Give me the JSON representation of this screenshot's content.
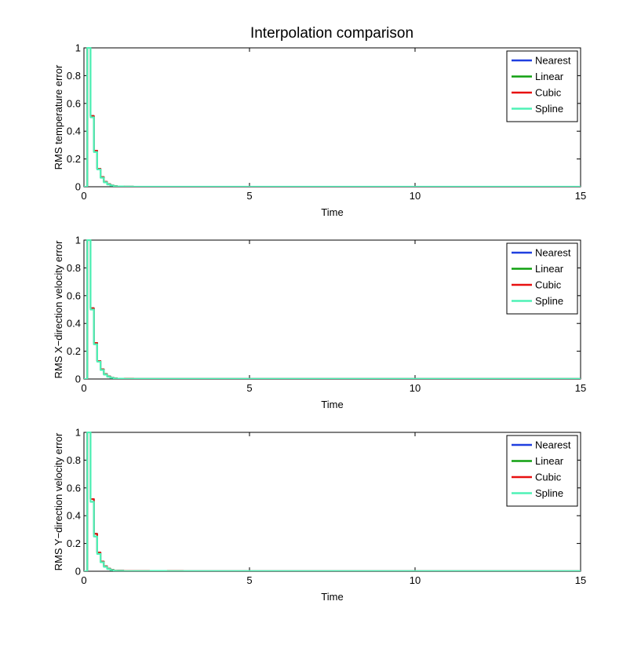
{
  "figure": {
    "title": "Interpolation comparison"
  },
  "chart_data": [
    {
      "type": "line",
      "ylabel": "RMS temperature error",
      "xlabel": "Time",
      "xlim": [
        0,
        15
      ],
      "ylim": [
        0,
        1
      ],
      "xticks": [
        0,
        5,
        10,
        15
      ],
      "yticks": [
        0,
        0.2,
        0.4,
        0.6,
        0.8,
        1
      ],
      "xtick_labels": [
        "0",
        "5",
        "10",
        "15"
      ],
      "ytick_labels": [
        "0",
        "0.2",
        "0.4",
        "0.6",
        "0.8",
        "1"
      ],
      "legend": "top-right",
      "grid": false,
      "x": [
        0,
        0.1,
        0.2,
        0.3,
        0.4,
        0.5,
        0.6,
        0.7,
        0.8,
        0.9,
        1.0,
        1.2,
        1.5,
        2,
        3,
        5,
        10,
        15
      ],
      "series": [
        {
          "name": "Nearest",
          "color": "#1f3fe0",
          "values": [
            0,
            1,
            0.51,
            0.26,
            0.13,
            0.07,
            0.035,
            0.018,
            0.009,
            0.005,
            0.003,
            0.001,
            0,
            0,
            0,
            0,
            0,
            0
          ]
        },
        {
          "name": "Linear",
          "color": "#10a010",
          "values": [
            0,
            1,
            0.51,
            0.26,
            0.13,
            0.07,
            0.035,
            0.018,
            0.009,
            0.005,
            0.003,
            0.001,
            0,
            0,
            0,
            0,
            0,
            0
          ]
        },
        {
          "name": "Cubic",
          "color": "#e81010",
          "values": [
            0,
            1,
            0.51,
            0.26,
            0.13,
            0.07,
            0.035,
            0.018,
            0.009,
            0.005,
            0.003,
            0.001,
            0,
            0,
            0,
            0,
            0,
            0
          ]
        },
        {
          "name": "Spline",
          "color": "#4ef2b6",
          "values": [
            0,
            1,
            0.5,
            0.25,
            0.125,
            0.065,
            0.032,
            0.016,
            0.008,
            0.004,
            0.002,
            0.001,
            0,
            0,
            0,
            0,
            0,
            0
          ]
        }
      ]
    },
    {
      "type": "line",
      "ylabel": "RMS X−direction velocity error",
      "xlabel": "Time",
      "xlim": [
        0,
        15
      ],
      "ylim": [
        0,
        1
      ],
      "xticks": [
        0,
        5,
        10,
        15
      ],
      "yticks": [
        0,
        0.2,
        0.4,
        0.6,
        0.8,
        1
      ],
      "xtick_labels": [
        "0",
        "5",
        "10",
        "15"
      ],
      "ytick_labels": [
        "0",
        "0.2",
        "0.4",
        "0.6",
        "0.8",
        "1"
      ],
      "legend": "top-right",
      "grid": false,
      "x": [
        0,
        0.1,
        0.2,
        0.3,
        0.4,
        0.5,
        0.6,
        0.7,
        0.8,
        0.9,
        1.0,
        1.2,
        1.5,
        2,
        3,
        5,
        10,
        15
      ],
      "series": [
        {
          "name": "Nearest",
          "color": "#1f3fe0",
          "values": [
            0,
            1,
            0.51,
            0.26,
            0.13,
            0.07,
            0.035,
            0.018,
            0.009,
            0.005,
            0.003,
            0.002,
            0.001,
            0.001,
            0.001,
            0.001,
            0.001,
            0.001
          ]
        },
        {
          "name": "Linear",
          "color": "#10a010",
          "values": [
            0,
            1,
            0.51,
            0.26,
            0.13,
            0.07,
            0.035,
            0.018,
            0.009,
            0.005,
            0.003,
            0.002,
            0.001,
            0.001,
            0.001,
            0.001,
            0.001,
            0.001
          ]
        },
        {
          "name": "Cubic",
          "color": "#e81010",
          "values": [
            0,
            1,
            0.51,
            0.26,
            0.13,
            0.07,
            0.035,
            0.018,
            0.009,
            0.005,
            0.003,
            0.002,
            0.001,
            0.001,
            0.001,
            0.001,
            0.001,
            0.001
          ]
        },
        {
          "name": "Spline",
          "color": "#4ef2b6",
          "values": [
            0,
            1,
            0.5,
            0.25,
            0.125,
            0.065,
            0.032,
            0.016,
            0.008,
            0.004,
            0.002,
            0.001,
            0.001,
            0.001,
            0.001,
            0.001,
            0.001,
            0.001
          ]
        }
      ]
    },
    {
      "type": "line",
      "ylabel": "RMS Y−direction velocity error",
      "xlabel": "Time",
      "xlim": [
        0,
        15
      ],
      "ylim": [
        0,
        1
      ],
      "xticks": [
        0,
        5,
        10,
        15
      ],
      "yticks": [
        0,
        0.2,
        0.4,
        0.6,
        0.8,
        1
      ],
      "xtick_labels": [
        "0",
        "5",
        "10",
        "15"
      ],
      "ytick_labels": [
        "0",
        "0.2",
        "0.4",
        "0.6",
        "0.8",
        "1"
      ],
      "legend": "top-right",
      "grid": false,
      "x": [
        0,
        0.1,
        0.2,
        0.3,
        0.4,
        0.5,
        0.6,
        0.7,
        0.8,
        0.9,
        1.0,
        1.2,
        1.5,
        2,
        2.5,
        3,
        5,
        10,
        15
      ],
      "series": [
        {
          "name": "Nearest",
          "color": "#1f3fe0",
          "values": [
            0,
            1,
            0.52,
            0.27,
            0.135,
            0.07,
            0.036,
            0.018,
            0.01,
            0.006,
            0.004,
            0.003,
            0.002,
            0.003,
            0.002,
            0.001,
            0.001,
            0.001,
            0.001
          ]
        },
        {
          "name": "Linear",
          "color": "#10a010",
          "values": [
            0,
            1,
            0.52,
            0.27,
            0.135,
            0.07,
            0.036,
            0.018,
            0.01,
            0.006,
            0.004,
            0.003,
            0.002,
            0.003,
            0.002,
            0.001,
            0.001,
            0.001,
            0.001
          ]
        },
        {
          "name": "Cubic",
          "color": "#e81010",
          "values": [
            0,
            1,
            0.52,
            0.27,
            0.135,
            0.07,
            0.036,
            0.018,
            0.01,
            0.006,
            0.004,
            0.003,
            0.002,
            0.003,
            0.002,
            0.001,
            0.001,
            0.001,
            0.001
          ]
        },
        {
          "name": "Spline",
          "color": "#4ef2b6",
          "values": [
            0,
            1,
            0.5,
            0.25,
            0.125,
            0.065,
            0.032,
            0.016,
            0.008,
            0.004,
            0.002,
            0.001,
            0.001,
            0.002,
            0.001,
            0.001,
            0.001,
            0.001,
            0.001
          ]
        }
      ]
    }
  ]
}
